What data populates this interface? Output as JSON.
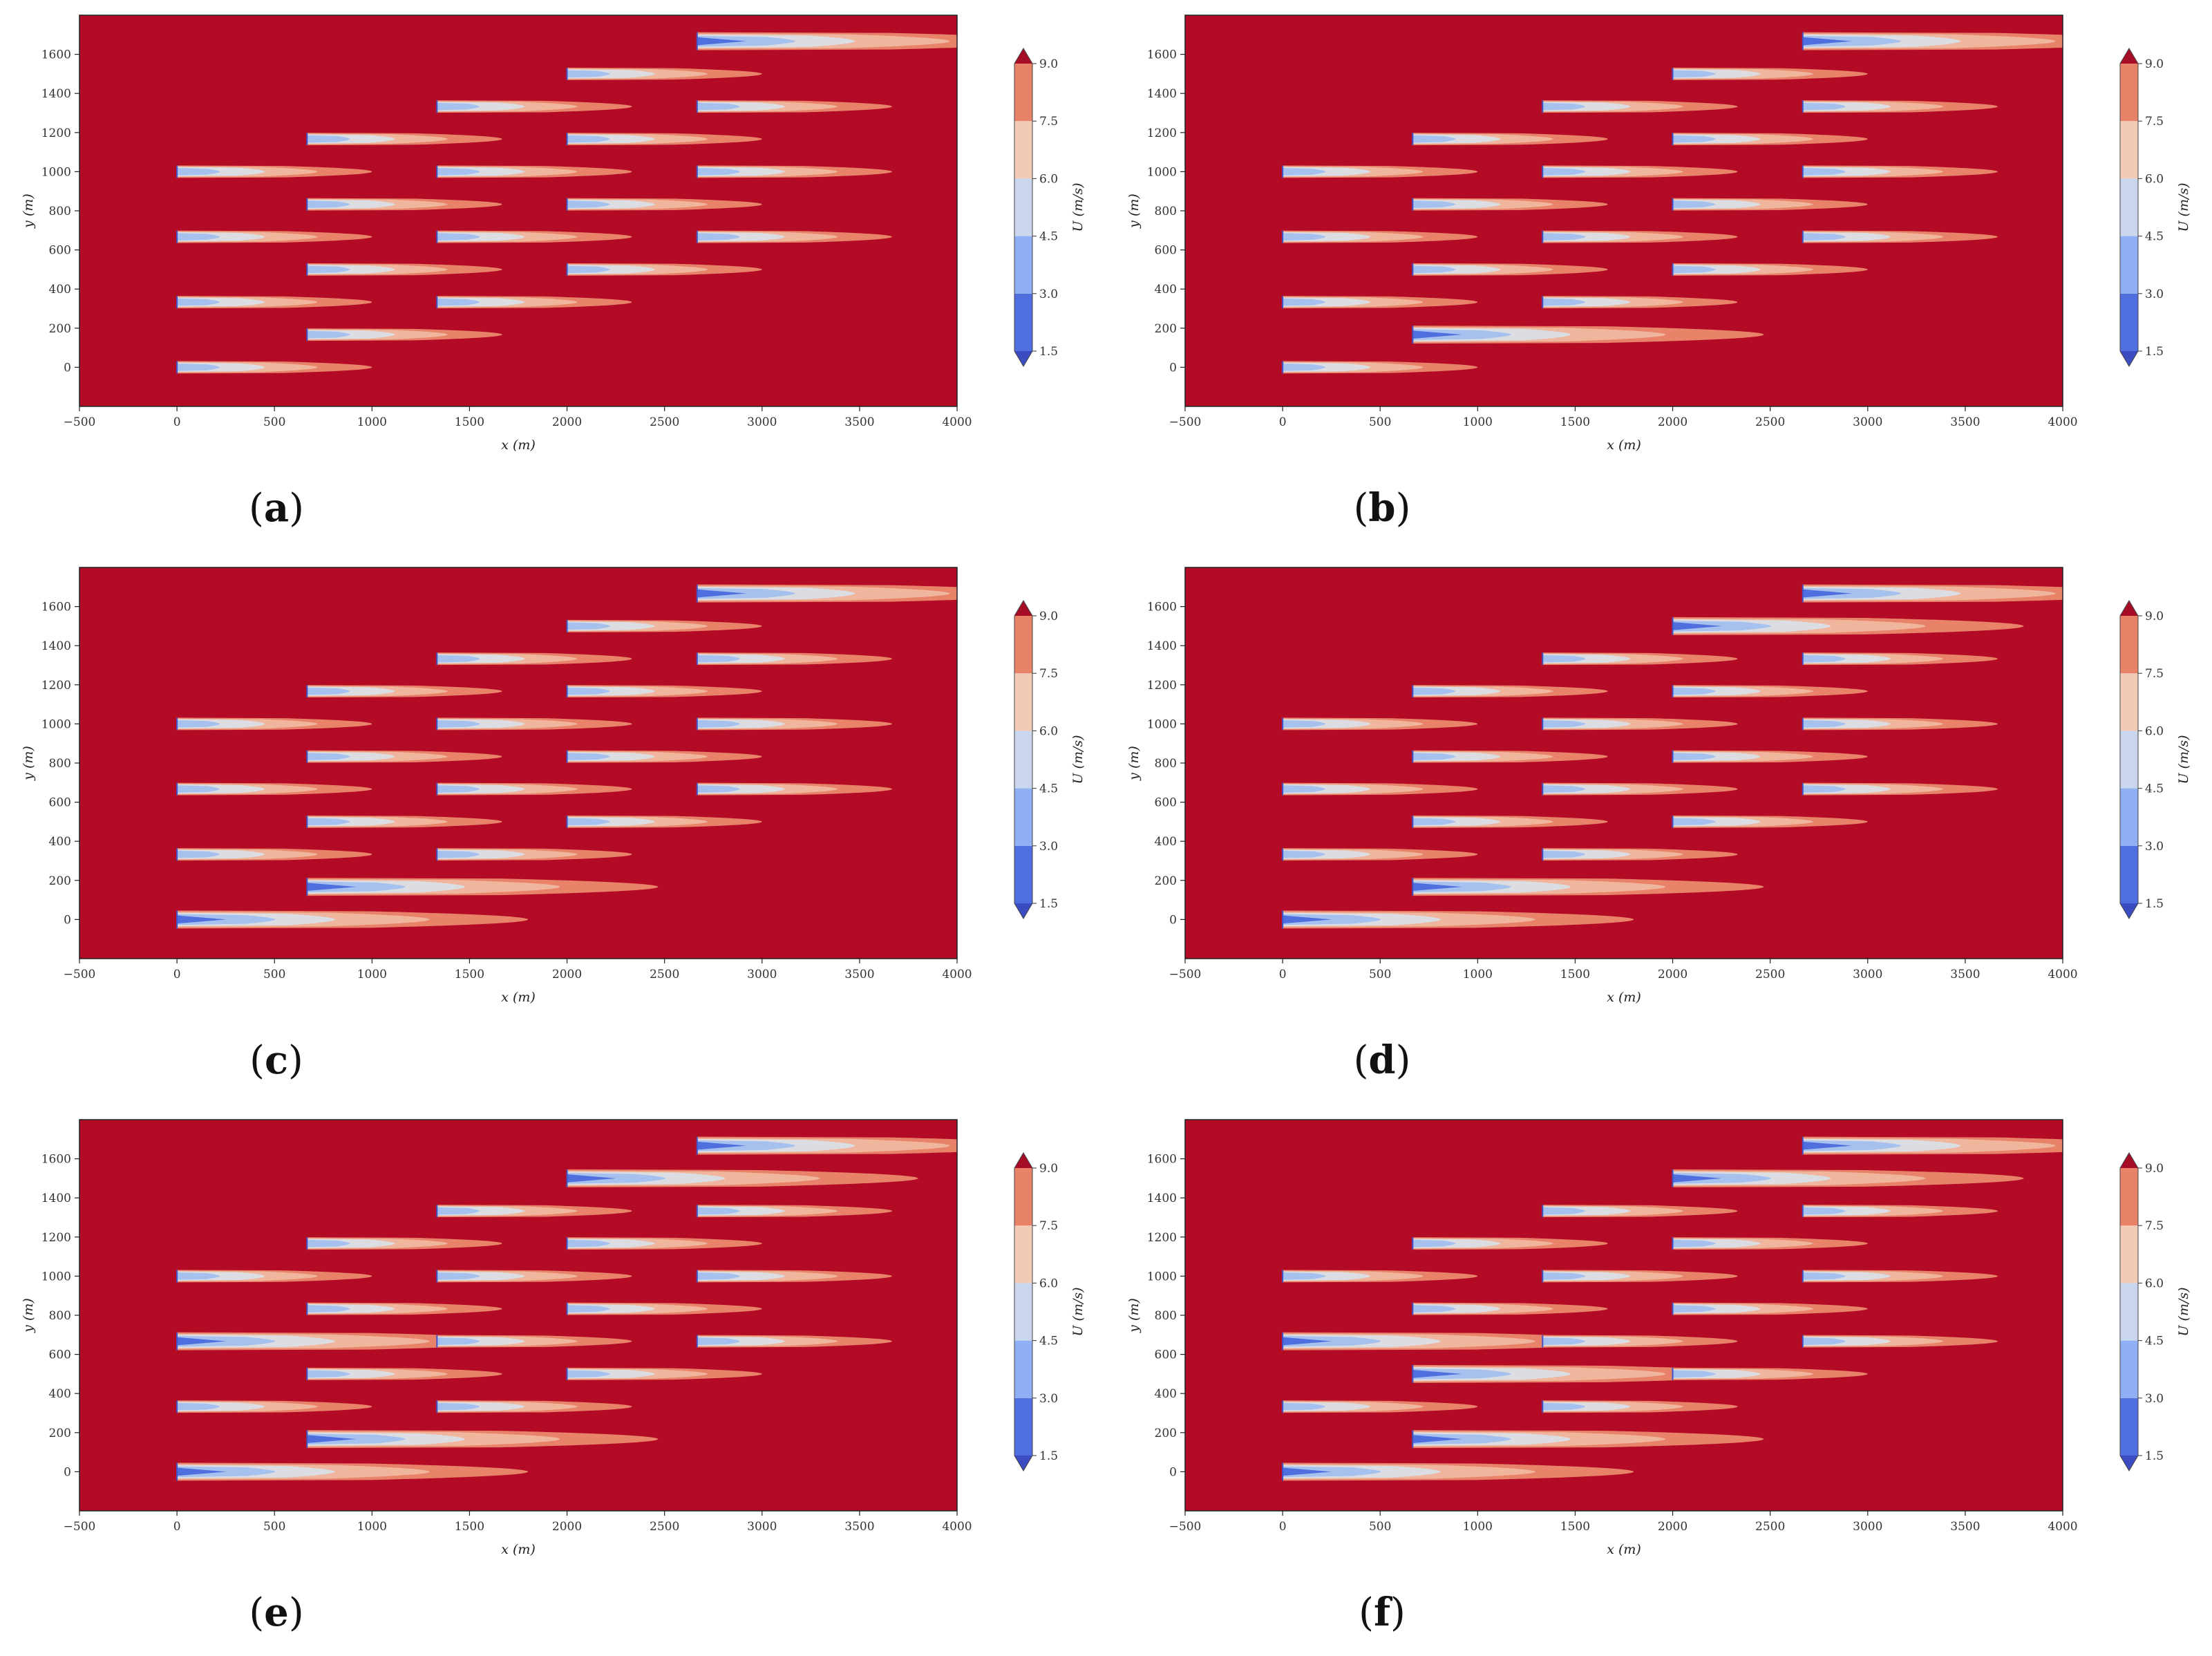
{
  "chart_data": [
    {
      "type": "heatmap",
      "panel_label": "a",
      "xlabel": "x (m)",
      "ylabel": "y (m)",
      "xlim": [
        -500,
        4000
      ],
      "ylim": [
        -200,
        1800
      ],
      "xticks": [
        -500,
        0,
        500,
        1000,
        1500,
        2000,
        2500,
        3000,
        3500,
        4000
      ],
      "yticks": [
        0,
        200,
        400,
        600,
        800,
        1000,
        1200,
        1400,
        1600
      ],
      "colorbar": {
        "label": "U (m/s)",
        "ticks": [
          1.5,
          3.0,
          4.5,
          6.0,
          7.5,
          9.0
        ],
        "extend": "both"
      },
      "background_speed": 9.0,
      "turbines": [
        {
          "x": 0,
          "y": 0,
          "strong": false
        },
        {
          "x": 667,
          "y": 167,
          "strong": false
        },
        {
          "x": 0,
          "y": 333,
          "strong": false
        },
        {
          "x": 1333,
          "y": 333,
          "strong": false
        },
        {
          "x": 667,
          "y": 500,
          "strong": false
        },
        {
          "x": 2000,
          "y": 500,
          "strong": false
        },
        {
          "x": 0,
          "y": 667,
          "strong": false
        },
        {
          "x": 1333,
          "y": 667,
          "strong": false
        },
        {
          "x": 2667,
          "y": 667,
          "strong": false
        },
        {
          "x": 667,
          "y": 833,
          "strong": false
        },
        {
          "x": 2000,
          "y": 833,
          "strong": false
        },
        {
          "x": 0,
          "y": 1000,
          "strong": false
        },
        {
          "x": 1333,
          "y": 1000,
          "strong": false
        },
        {
          "x": 2667,
          "y": 1000,
          "strong": false
        },
        {
          "x": 667,
          "y": 1167,
          "strong": false
        },
        {
          "x": 2000,
          "y": 1167,
          "strong": false
        },
        {
          "x": 1333,
          "y": 1333,
          "strong": false
        },
        {
          "x": 2667,
          "y": 1333,
          "strong": false
        },
        {
          "x": 2000,
          "y": 1500,
          "strong": false
        },
        {
          "x": 2667,
          "y": 1667,
          "strong": true
        }
      ]
    },
    {
      "type": "heatmap",
      "panel_label": "b",
      "xlabel": "x (m)",
      "ylabel": "y (m)",
      "xlim": [
        -500,
        4000
      ],
      "ylim": [
        -200,
        1800
      ],
      "xticks": [
        -500,
        0,
        500,
        1000,
        1500,
        2000,
        2500,
        3000,
        3500,
        4000
      ],
      "yticks": [
        0,
        200,
        400,
        600,
        800,
        1000,
        1200,
        1400,
        1600
      ],
      "colorbar": {
        "label": "U (m/s)",
        "ticks": [
          1.5,
          3.0,
          4.5,
          6.0,
          7.5,
          9.0
        ],
        "extend": "both"
      },
      "background_speed": 9.0,
      "turbines": [
        {
          "x": 0,
          "y": 0,
          "strong": false
        },
        {
          "x": 667,
          "y": 167,
          "strong": true
        },
        {
          "x": 0,
          "y": 333,
          "strong": false
        },
        {
          "x": 1333,
          "y": 333,
          "strong": false
        },
        {
          "x": 667,
          "y": 500,
          "strong": false
        },
        {
          "x": 2000,
          "y": 500,
          "strong": false
        },
        {
          "x": 0,
          "y": 667,
          "strong": false
        },
        {
          "x": 1333,
          "y": 667,
          "strong": false
        },
        {
          "x": 2667,
          "y": 667,
          "strong": false
        },
        {
          "x": 667,
          "y": 833,
          "strong": false
        },
        {
          "x": 2000,
          "y": 833,
          "strong": false
        },
        {
          "x": 0,
          "y": 1000,
          "strong": false
        },
        {
          "x": 1333,
          "y": 1000,
          "strong": false
        },
        {
          "x": 2667,
          "y": 1000,
          "strong": false
        },
        {
          "x": 667,
          "y": 1167,
          "strong": false
        },
        {
          "x": 2000,
          "y": 1167,
          "strong": false
        },
        {
          "x": 1333,
          "y": 1333,
          "strong": false
        },
        {
          "x": 2667,
          "y": 1333,
          "strong": false
        },
        {
          "x": 2000,
          "y": 1500,
          "strong": false
        },
        {
          "x": 2667,
          "y": 1667,
          "strong": true
        }
      ]
    },
    {
      "type": "heatmap",
      "panel_label": "c",
      "xlabel": "x (m)",
      "ylabel": "y (m)",
      "xlim": [
        -500,
        4000
      ],
      "ylim": [
        -200,
        1800
      ],
      "xticks": [
        -500,
        0,
        500,
        1000,
        1500,
        2000,
        2500,
        3000,
        3500,
        4000
      ],
      "yticks": [
        0,
        200,
        400,
        600,
        800,
        1000,
        1200,
        1400,
        1600
      ],
      "colorbar": {
        "label": "U (m/s)",
        "ticks": [
          1.5,
          3.0,
          4.5,
          6.0,
          7.5,
          9.0
        ],
        "extend": "both"
      },
      "background_speed": 9.0,
      "turbines": [
        {
          "x": 0,
          "y": 0,
          "strong": true
        },
        {
          "x": 667,
          "y": 167,
          "strong": true
        },
        {
          "x": 0,
          "y": 333,
          "strong": false
        },
        {
          "x": 1333,
          "y": 333,
          "strong": false
        },
        {
          "x": 667,
          "y": 500,
          "strong": false
        },
        {
          "x": 2000,
          "y": 500,
          "strong": false
        },
        {
          "x": 0,
          "y": 667,
          "strong": false
        },
        {
          "x": 1333,
          "y": 667,
          "strong": false
        },
        {
          "x": 2667,
          "y": 667,
          "strong": false
        },
        {
          "x": 667,
          "y": 833,
          "strong": false
        },
        {
          "x": 2000,
          "y": 833,
          "strong": false
        },
        {
          "x": 0,
          "y": 1000,
          "strong": false
        },
        {
          "x": 1333,
          "y": 1000,
          "strong": false
        },
        {
          "x": 2667,
          "y": 1000,
          "strong": false
        },
        {
          "x": 667,
          "y": 1167,
          "strong": false
        },
        {
          "x": 2000,
          "y": 1167,
          "strong": false
        },
        {
          "x": 1333,
          "y": 1333,
          "strong": false
        },
        {
          "x": 2667,
          "y": 1333,
          "strong": false
        },
        {
          "x": 2000,
          "y": 1500,
          "strong": false
        },
        {
          "x": 2667,
          "y": 1667,
          "strong": true
        }
      ]
    },
    {
      "type": "heatmap",
      "panel_label": "d",
      "xlabel": "x (m)",
      "ylabel": "y (m)",
      "xlim": [
        -500,
        4000
      ],
      "ylim": [
        -200,
        1800
      ],
      "xticks": [
        -500,
        0,
        500,
        1000,
        1500,
        2000,
        2500,
        3000,
        3500,
        4000
      ],
      "yticks": [
        0,
        200,
        400,
        600,
        800,
        1000,
        1200,
        1400,
        1600
      ],
      "colorbar": {
        "label": "U (m/s)",
        "ticks": [
          1.5,
          3.0,
          4.5,
          6.0,
          7.5,
          9.0
        ],
        "extend": "both"
      },
      "background_speed": 9.0,
      "turbines": [
        {
          "x": 0,
          "y": 0,
          "strong": true
        },
        {
          "x": 667,
          "y": 167,
          "strong": true
        },
        {
          "x": 0,
          "y": 333,
          "strong": false
        },
        {
          "x": 1333,
          "y": 333,
          "strong": false
        },
        {
          "x": 667,
          "y": 500,
          "strong": false
        },
        {
          "x": 2000,
          "y": 500,
          "strong": false
        },
        {
          "x": 0,
          "y": 667,
          "strong": false
        },
        {
          "x": 1333,
          "y": 667,
          "strong": false
        },
        {
          "x": 2667,
          "y": 667,
          "strong": false
        },
        {
          "x": 667,
          "y": 833,
          "strong": false
        },
        {
          "x": 2000,
          "y": 833,
          "strong": false
        },
        {
          "x": 0,
          "y": 1000,
          "strong": false
        },
        {
          "x": 1333,
          "y": 1000,
          "strong": false
        },
        {
          "x": 2667,
          "y": 1000,
          "strong": false
        },
        {
          "x": 667,
          "y": 1167,
          "strong": false
        },
        {
          "x": 2000,
          "y": 1167,
          "strong": false
        },
        {
          "x": 1333,
          "y": 1333,
          "strong": false
        },
        {
          "x": 2667,
          "y": 1333,
          "strong": false
        },
        {
          "x": 2000,
          "y": 1500,
          "strong": true
        },
        {
          "x": 2667,
          "y": 1667,
          "strong": true
        }
      ]
    },
    {
      "type": "heatmap",
      "panel_label": "e",
      "xlabel": "x (m)",
      "ylabel": "y (m)",
      "xlim": [
        -500,
        4000
      ],
      "ylim": [
        -200,
        1800
      ],
      "xticks": [
        -500,
        0,
        500,
        1000,
        1500,
        2000,
        2500,
        3000,
        3500,
        4000
      ],
      "yticks": [
        0,
        200,
        400,
        600,
        800,
        1000,
        1200,
        1400,
        1600
      ],
      "colorbar": {
        "label": "U (m/s)",
        "ticks": [
          1.5,
          3.0,
          4.5,
          6.0,
          7.5,
          9.0
        ],
        "extend": "both"
      },
      "background_speed": 9.0,
      "turbines": [
        {
          "x": 0,
          "y": 0,
          "strong": true
        },
        {
          "x": 667,
          "y": 167,
          "strong": true
        },
        {
          "x": 0,
          "y": 333,
          "strong": false
        },
        {
          "x": 1333,
          "y": 333,
          "strong": false
        },
        {
          "x": 667,
          "y": 500,
          "strong": false
        },
        {
          "x": 2000,
          "y": 500,
          "strong": false
        },
        {
          "x": 0,
          "y": 667,
          "strong": true
        },
        {
          "x": 1333,
          "y": 667,
          "strong": false
        },
        {
          "x": 2667,
          "y": 667,
          "strong": false
        },
        {
          "x": 667,
          "y": 833,
          "strong": false
        },
        {
          "x": 2000,
          "y": 833,
          "strong": false
        },
        {
          "x": 0,
          "y": 1000,
          "strong": false
        },
        {
          "x": 1333,
          "y": 1000,
          "strong": false
        },
        {
          "x": 2667,
          "y": 1000,
          "strong": false
        },
        {
          "x": 667,
          "y": 1167,
          "strong": false
        },
        {
          "x": 2000,
          "y": 1167,
          "strong": false
        },
        {
          "x": 1333,
          "y": 1333,
          "strong": false
        },
        {
          "x": 2667,
          "y": 1333,
          "strong": false
        },
        {
          "x": 2000,
          "y": 1500,
          "strong": true
        },
        {
          "x": 2667,
          "y": 1667,
          "strong": true
        }
      ]
    },
    {
      "type": "heatmap",
      "panel_label": "f",
      "xlabel": "x (m)",
      "ylabel": "y (m)",
      "xlim": [
        -500,
        4000
      ],
      "ylim": [
        -200,
        1800
      ],
      "xticks": [
        -500,
        0,
        500,
        1000,
        1500,
        2000,
        2500,
        3000,
        3500,
        4000
      ],
      "yticks": [
        0,
        200,
        400,
        600,
        800,
        1000,
        1200,
        1400,
        1600
      ],
      "colorbar": {
        "label": "U (m/s)",
        "ticks": [
          1.5,
          3.0,
          4.5,
          6.0,
          7.5,
          9.0
        ],
        "extend": "both"
      },
      "background_speed": 9.0,
      "turbines": [
        {
          "x": 0,
          "y": 0,
          "strong": true
        },
        {
          "x": 667,
          "y": 167,
          "strong": true
        },
        {
          "x": 0,
          "y": 333,
          "strong": false
        },
        {
          "x": 1333,
          "y": 333,
          "strong": false
        },
        {
          "x": 667,
          "y": 500,
          "strong": true
        },
        {
          "x": 2000,
          "y": 500,
          "strong": false
        },
        {
          "x": 0,
          "y": 667,
          "strong": true
        },
        {
          "x": 1333,
          "y": 667,
          "strong": false
        },
        {
          "x": 2667,
          "y": 667,
          "strong": false
        },
        {
          "x": 667,
          "y": 833,
          "strong": false
        },
        {
          "x": 2000,
          "y": 833,
          "strong": false
        },
        {
          "x": 0,
          "y": 1000,
          "strong": false
        },
        {
          "x": 1333,
          "y": 1000,
          "strong": false
        },
        {
          "x": 2667,
          "y": 1000,
          "strong": false
        },
        {
          "x": 667,
          "y": 1167,
          "strong": false
        },
        {
          "x": 2000,
          "y": 1167,
          "strong": false
        },
        {
          "x": 1333,
          "y": 1333,
          "strong": false
        },
        {
          "x": 2667,
          "y": 1333,
          "strong": false
        },
        {
          "x": 2000,
          "y": 1500,
          "strong": true
        },
        {
          "x": 2667,
          "y": 1667,
          "strong": true
        }
      ]
    }
  ],
  "colors": {
    "background": "#b30b26",
    "wake_outer": "#e8836a",
    "wake_mid": "#f0b59d",
    "wake_light": "#dcdde3",
    "wake_core": "#a6c1ee",
    "wake_deep": "#4f6fde",
    "cb_bands": [
      "#4f6fde",
      "#8fb0f4",
      "#c9d6ee",
      "#f2cbb7",
      "#e8836a",
      "#c0391f"
    ],
    "cb_under": "#3b4cc0",
    "cb_over": "#a50c26"
  }
}
